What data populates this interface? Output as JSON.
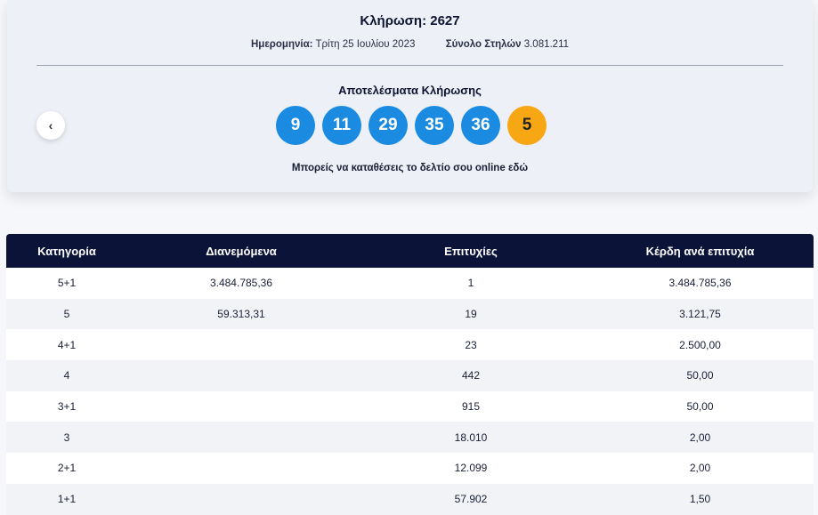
{
  "draw": {
    "title": "Κλήρωση: 2627",
    "date_label": "Ημερομηνία:",
    "date_value": "Τρίτη 25 Ιουλίου 2023",
    "columns_label": "Σύνολο Στηλών",
    "columns_value": "3.081.211",
    "results_title": "Αποτελέσματα Κλήρωσης",
    "numbers": [
      "9",
      "11",
      "29",
      "35",
      "36"
    ],
    "bonus": "5",
    "online_text": "Μπορείς να καταθέσεις το δελτίο σου online",
    "online_link": "εδώ",
    "prev_icon": "‹"
  },
  "colors": {
    "ball": "#1a8be0",
    "bonus_ball": "#f7a614",
    "table_header": "#0b1438"
  },
  "table": {
    "headers": [
      "Κατηγορία",
      "Διανεμόμενα",
      "Επιτυχίες",
      "Κέρδη ανά επιτυχία"
    ],
    "rows": [
      [
        "5+1",
        "3.484.785,36",
        "1",
        "3.484.785,36"
      ],
      [
        "5",
        "59.313,31",
        "19",
        "3.121,75"
      ],
      [
        "4+1",
        "",
        "23",
        "2.500,00"
      ],
      [
        "4",
        "",
        "442",
        "50,00"
      ],
      [
        "3+1",
        "",
        "915",
        "50,00"
      ],
      [
        "3",
        "",
        "18.010",
        "2,00"
      ],
      [
        "2+1",
        "",
        "12.099",
        "2,00"
      ],
      [
        "1+1",
        "",
        "57.902",
        "1,50"
      ]
    ]
  }
}
